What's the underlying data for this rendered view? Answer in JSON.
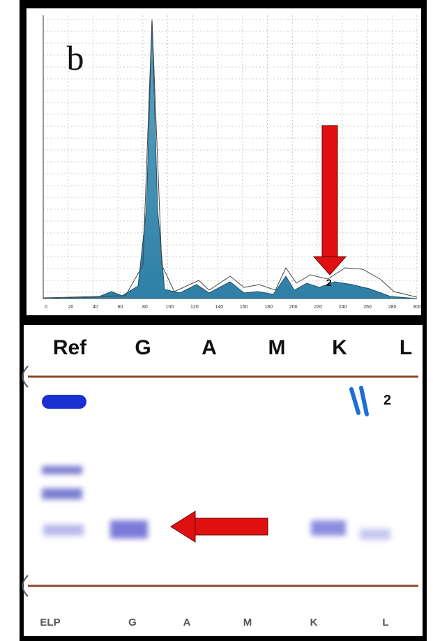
{
  "densitogram": {
    "panel_label": "b",
    "x_ticks": [
      "0",
      "20",
      "40",
      "60",
      "80",
      "100",
      "120",
      "140",
      "160",
      "180",
      "200",
      "220",
      "240",
      "260",
      "280",
      "300"
    ],
    "peak_marker": "2"
  },
  "gel": {
    "lanes_top": [
      "Ref",
      "G",
      "A",
      "M",
      "K",
      "L"
    ],
    "band_marker": "2",
    "lanes_bottom": [
      "ELP",
      "G",
      "A",
      "M",
      "K",
      "L"
    ]
  }
}
